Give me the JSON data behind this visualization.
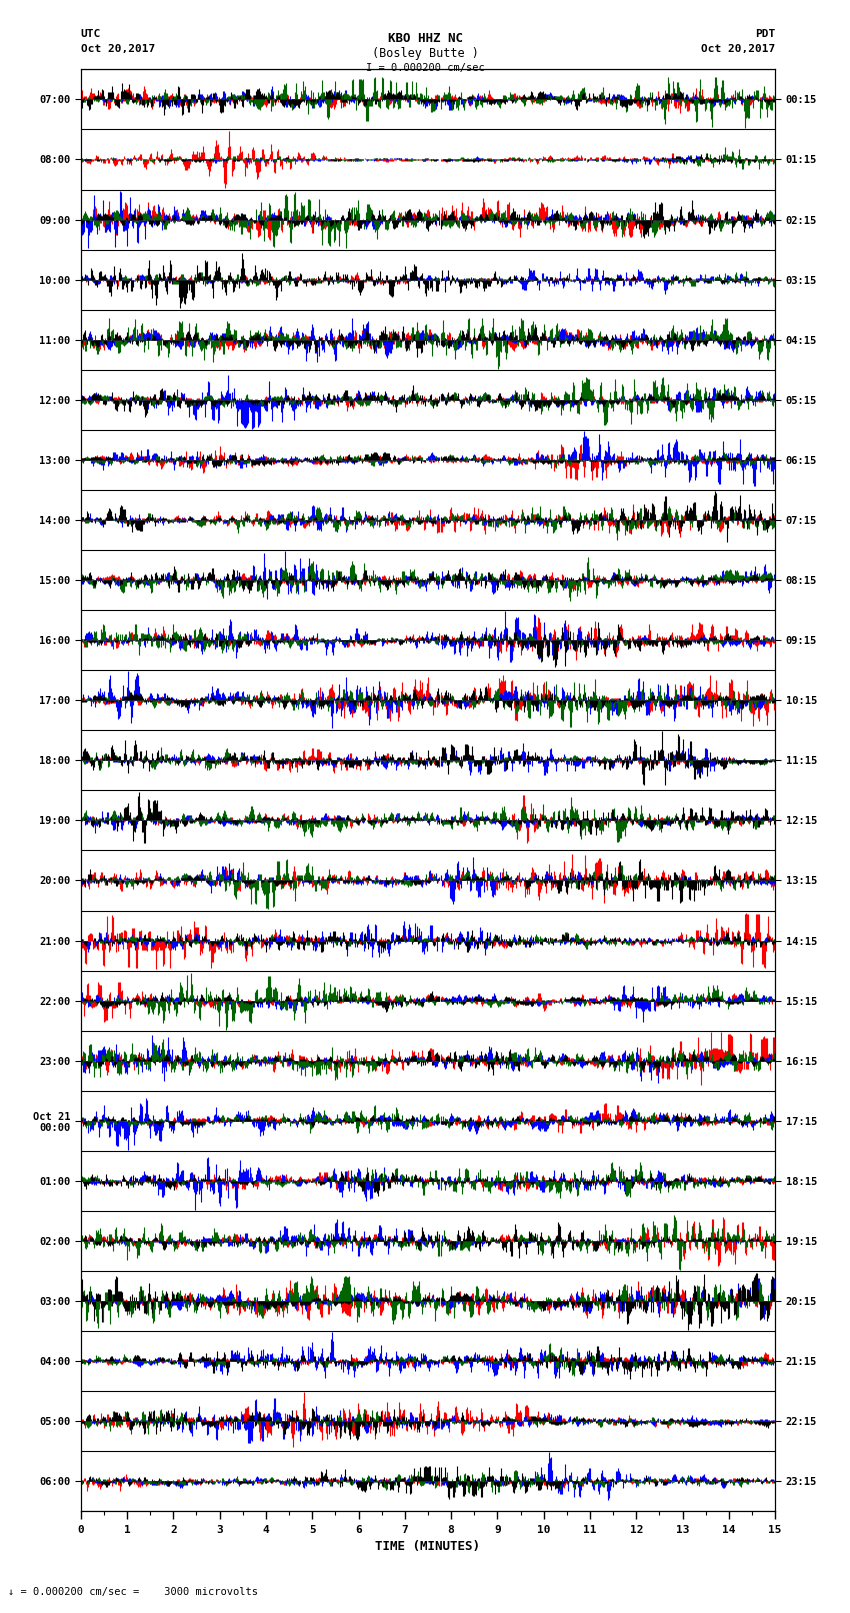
{
  "title_line1": "KBO HHZ NC",
  "title_line2": "(Bosley Butte )",
  "scale_label": "I = 0.000200 cm/sec",
  "left_label_line1": "UTC",
  "left_label_line2": "Oct 20,2017",
  "right_label_line1": "PDT",
  "right_label_line2": "Oct 20,2017",
  "bottom_label": "TIME (MINUTES)",
  "bottom_note": "↓ = 0.000200 cm/sec =    3000 microvolts",
  "left_times": [
    "07:00",
    "08:00",
    "09:00",
    "10:00",
    "11:00",
    "12:00",
    "13:00",
    "14:00",
    "15:00",
    "16:00",
    "17:00",
    "18:00",
    "19:00",
    "20:00",
    "21:00",
    "22:00",
    "23:00",
    "Oct 21\n00:00",
    "01:00",
    "02:00",
    "03:00",
    "04:00",
    "05:00",
    "06:00"
  ],
  "right_times": [
    "00:15",
    "01:15",
    "02:15",
    "03:15",
    "04:15",
    "05:15",
    "06:15",
    "07:15",
    "08:15",
    "09:15",
    "10:15",
    "11:15",
    "12:15",
    "13:15",
    "14:15",
    "15:15",
    "16:15",
    "17:15",
    "18:15",
    "19:15",
    "20:15",
    "21:15",
    "22:15",
    "23:15"
  ],
  "n_traces": 24,
  "n_minutes": 15,
  "bg_color": "#ffffff",
  "colors": [
    "#ff0000",
    "#0000ff",
    "#006400",
    "#000000"
  ],
  "figsize": [
    8.5,
    16.13
  ],
  "dpi": 100
}
